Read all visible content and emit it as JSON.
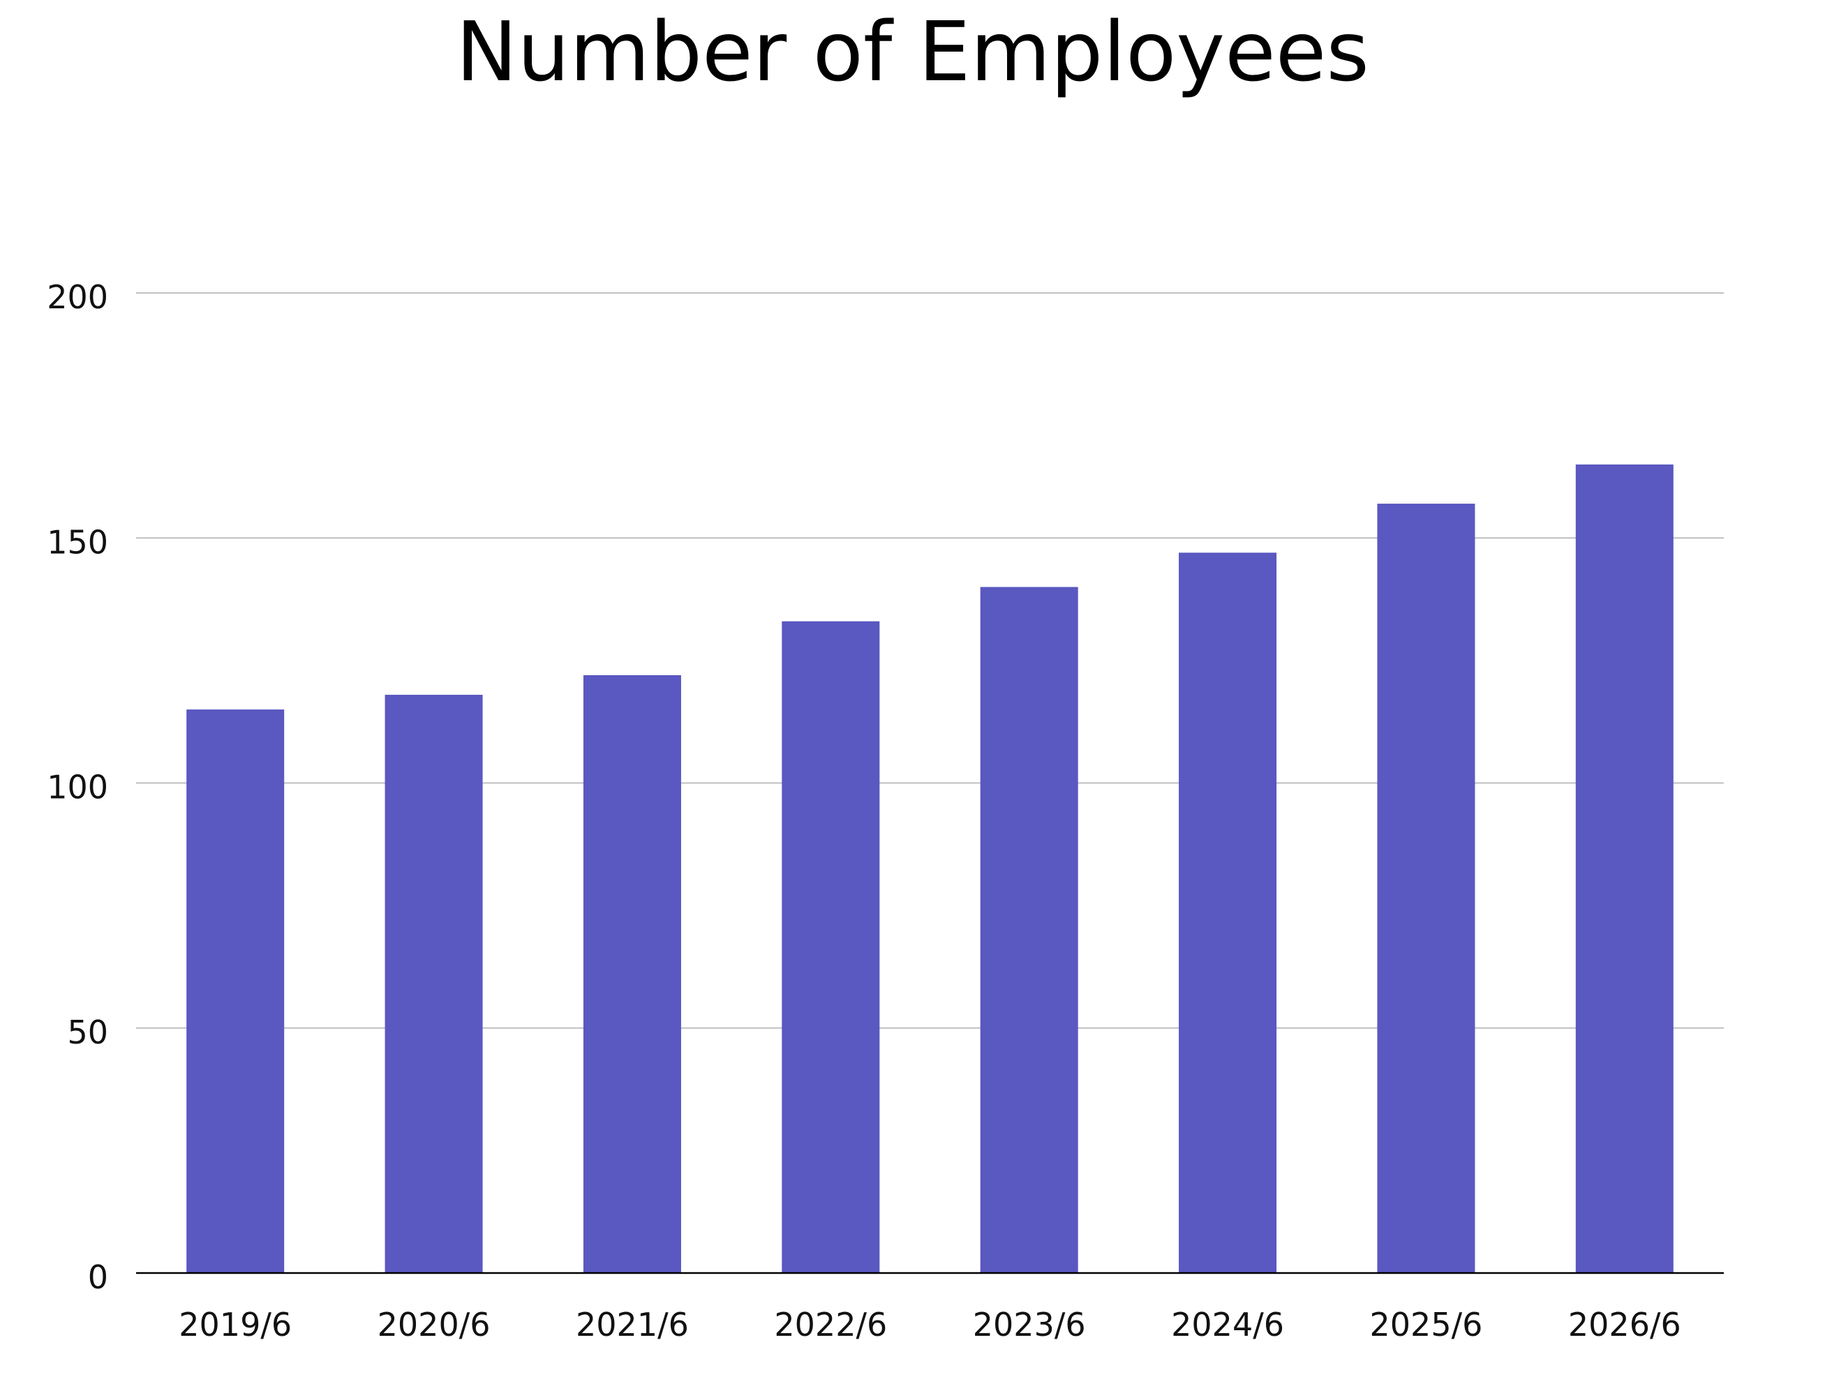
{
  "chart_data": {
    "type": "bar",
    "title": "Number of Employees",
    "xlabel": "",
    "ylabel": "",
    "categories": [
      "2019/6",
      "2020/6",
      "2021/6",
      "2022/6",
      "2023/6",
      "2024/6",
      "2025/6",
      "2026/6"
    ],
    "values": [
      115,
      118,
      122,
      133,
      140,
      147,
      157,
      165
    ],
    "ylim": [
      0,
      200
    ],
    "yticks": [
      "0",
      "50",
      "100",
      "150",
      "200"
    ],
    "grid": true,
    "legend": "none",
    "colors": {
      "bar": "#5a58c1",
      "grid": "#bfbfbf",
      "axis": "#000000"
    }
  }
}
